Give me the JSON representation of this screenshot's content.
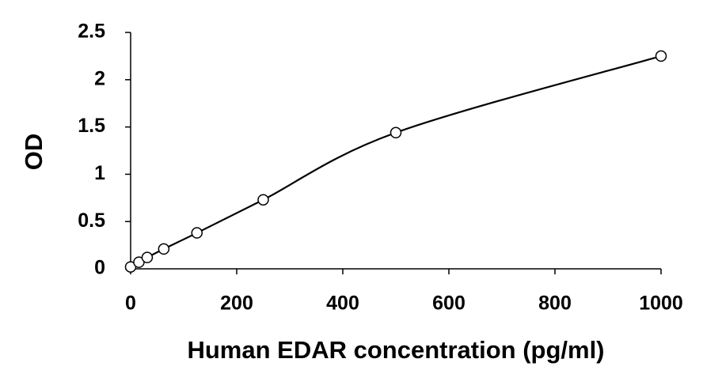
{
  "chart_data": {
    "type": "scatter",
    "x_label": "Human EDAR concentration (pg/ml)",
    "y_label": "OD",
    "x": [
      0,
      15.6,
      31.25,
      62.5,
      125,
      250,
      500,
      1000
    ],
    "values": [
      0.02,
      0.07,
      0.12,
      0.21,
      0.38,
      0.73,
      1.44,
      2.25
    ],
    "color": "#000000",
    "line": true,
    "xlim": [
      0,
      1000
    ],
    "xticks": [
      0,
      200,
      400,
      600,
      800,
      1000
    ],
    "ylim": [
      0,
      2.5
    ],
    "yticks": [
      0,
      0.5,
      1,
      1.5,
      2,
      2.5
    ],
    "grid": false
  }
}
